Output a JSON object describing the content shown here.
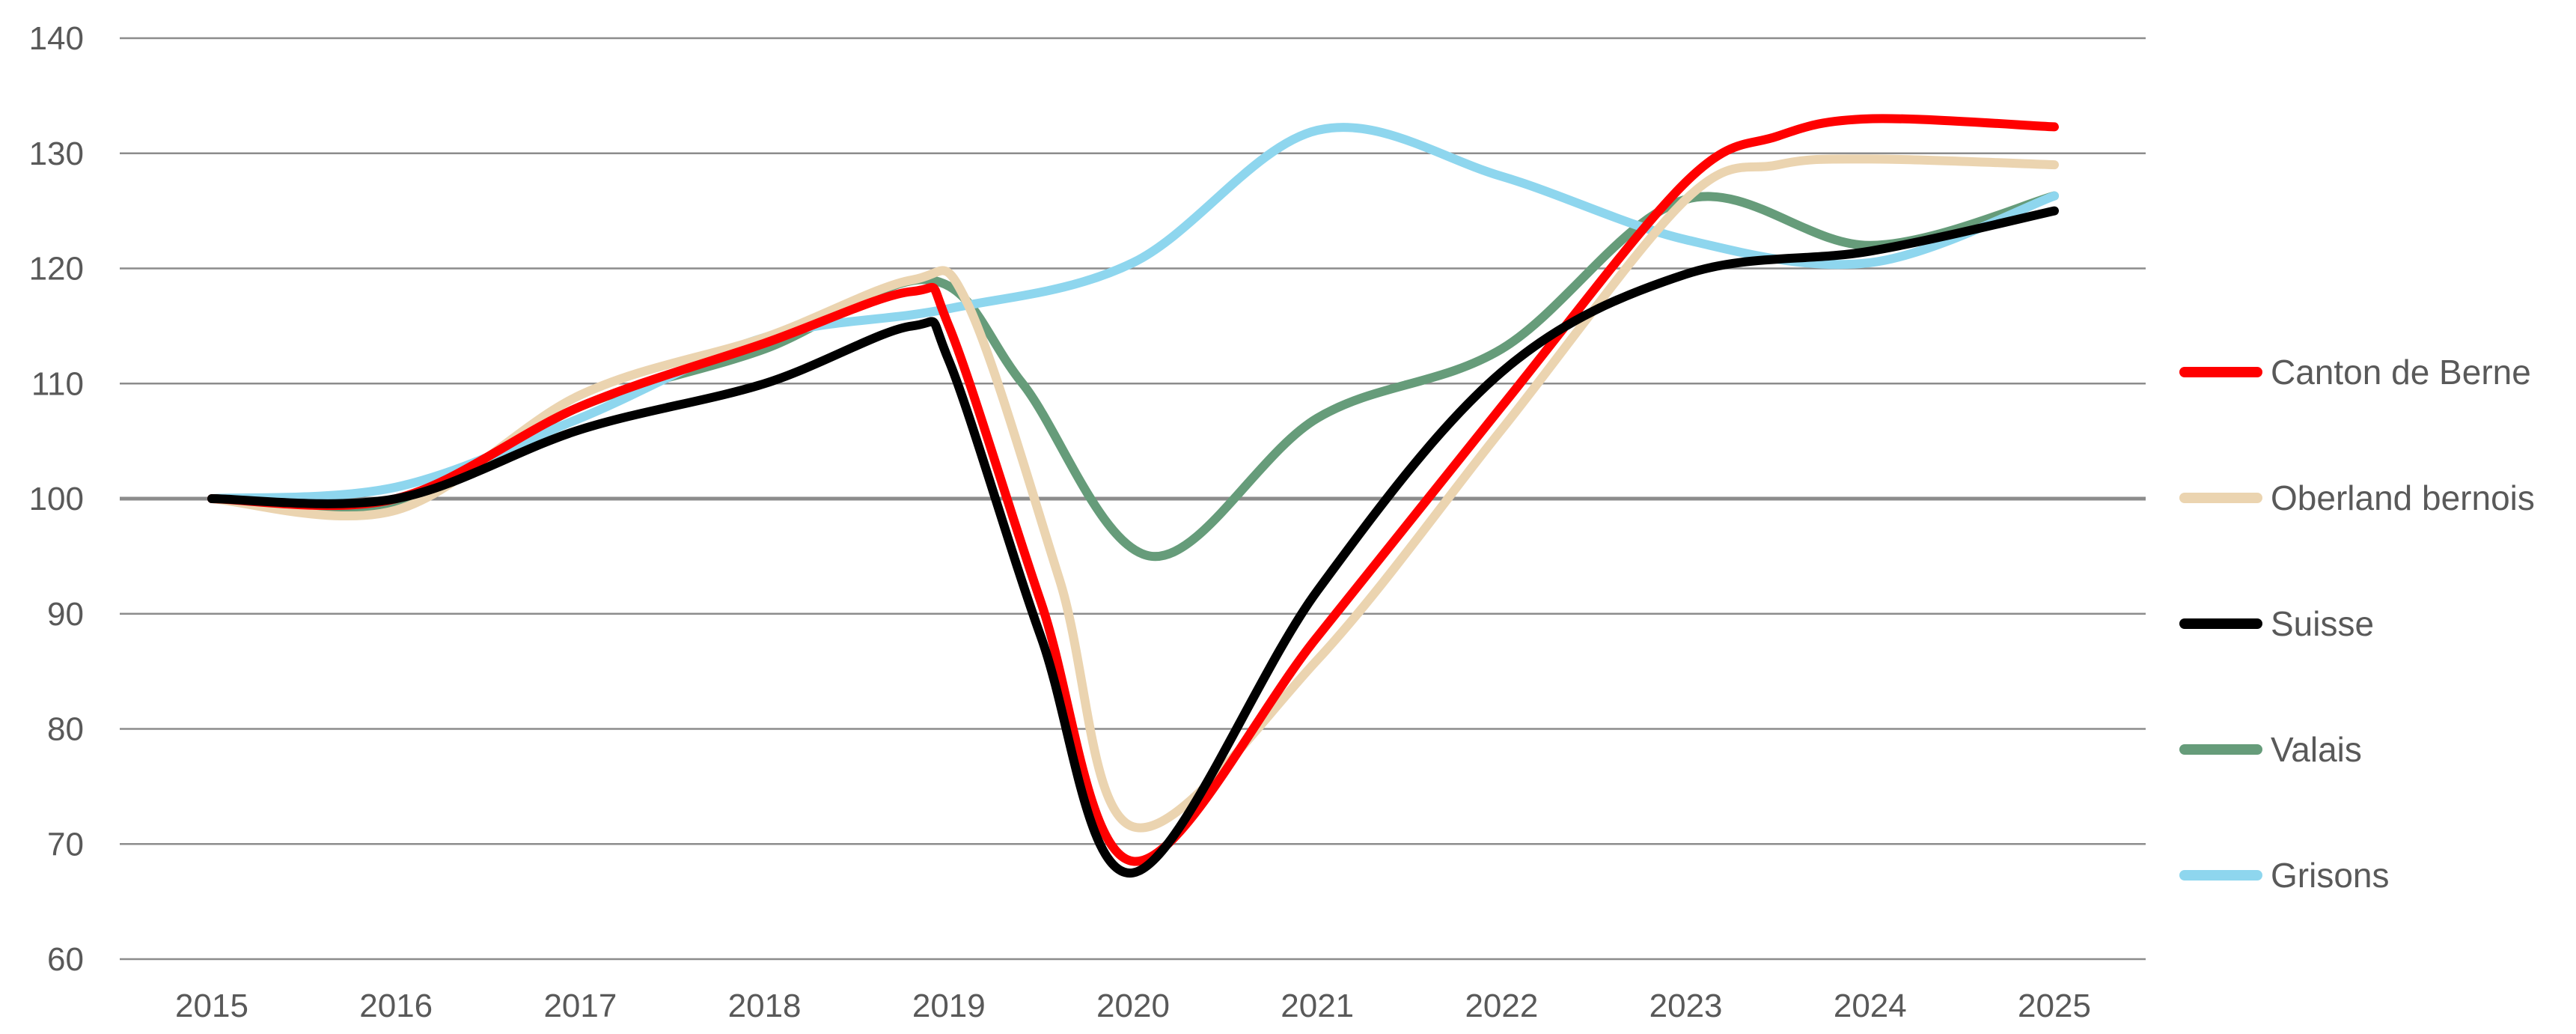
{
  "chart_data": {
    "type": "line",
    "title": "",
    "xlabel": "",
    "ylabel": "",
    "ylim": [
      60,
      140
    ],
    "yticks": [
      "60",
      "70",
      "80",
      "90",
      "100",
      "110",
      "120",
      "130",
      "140"
    ],
    "xticks": [
      "2015",
      "2016",
      "2017",
      "2018",
      "2019",
      "2020",
      "2021",
      "2022",
      "2023",
      "2024",
      "2025"
    ],
    "grid": true,
    "legend": "right",
    "series": [
      {
        "name": "Canton de Berne",
        "color": "#FF0000",
        "x": [
          2015,
          2016,
          2017,
          2018,
          2018.8,
          2019,
          2019.5,
          2020,
          2021,
          2022,
          2023,
          2023.5,
          2024,
          2025
        ],
        "values": [
          100,
          100,
          108,
          113.5,
          118,
          115,
          91,
          68.5,
          88,
          108,
          127.5,
          131.5,
          133,
          132.3
        ]
      },
      {
        "name": "Oberland bernois",
        "color": "#EBD4B0",
        "x": [
          2015,
          2016,
          2017,
          2018,
          2018.8,
          2019.1,
          2019.6,
          2020,
          2021,
          2022,
          2023,
          2023.5,
          2024,
          2025
        ],
        "values": [
          100,
          99,
          109,
          114,
          119,
          117,
          93,
          71.5,
          86,
          106,
          126,
          129,
          129.5,
          129
        ]
      },
      {
        "name": "Suisse",
        "color": "#000000",
        "x": [
          2015,
          2016,
          2017,
          2018,
          2018.8,
          2019,
          2019.5,
          2020,
          2021,
          2022,
          2023,
          2024,
          2025
        ],
        "values": [
          100,
          100,
          106,
          110,
          115,
          112,
          88,
          67.5,
          92,
          111,
          119.5,
          121.5,
          125
        ]
      },
      {
        "name": "Valais",
        "color": "#669C7A",
        "x": [
          2015,
          2016,
          2017,
          2018,
          2018.9,
          2019.4,
          2020.1,
          2021,
          2022,
          2023,
          2024,
          2025
        ],
        "values": [
          100,
          99.5,
          108,
          113,
          119,
          110,
          95,
          107,
          113,
          126,
          122,
          126.3
        ]
      },
      {
        "name": "Grisons",
        "color": "#8ED6EE",
        "x": [
          2015,
          2016,
          2017,
          2018,
          2019,
          2020,
          2021,
          2022,
          2023,
          2024,
          2025
        ],
        "values": [
          100,
          101,
          107,
          114,
          116.5,
          120.5,
          132,
          128,
          122.5,
          120.5,
          126.3
        ]
      }
    ]
  }
}
